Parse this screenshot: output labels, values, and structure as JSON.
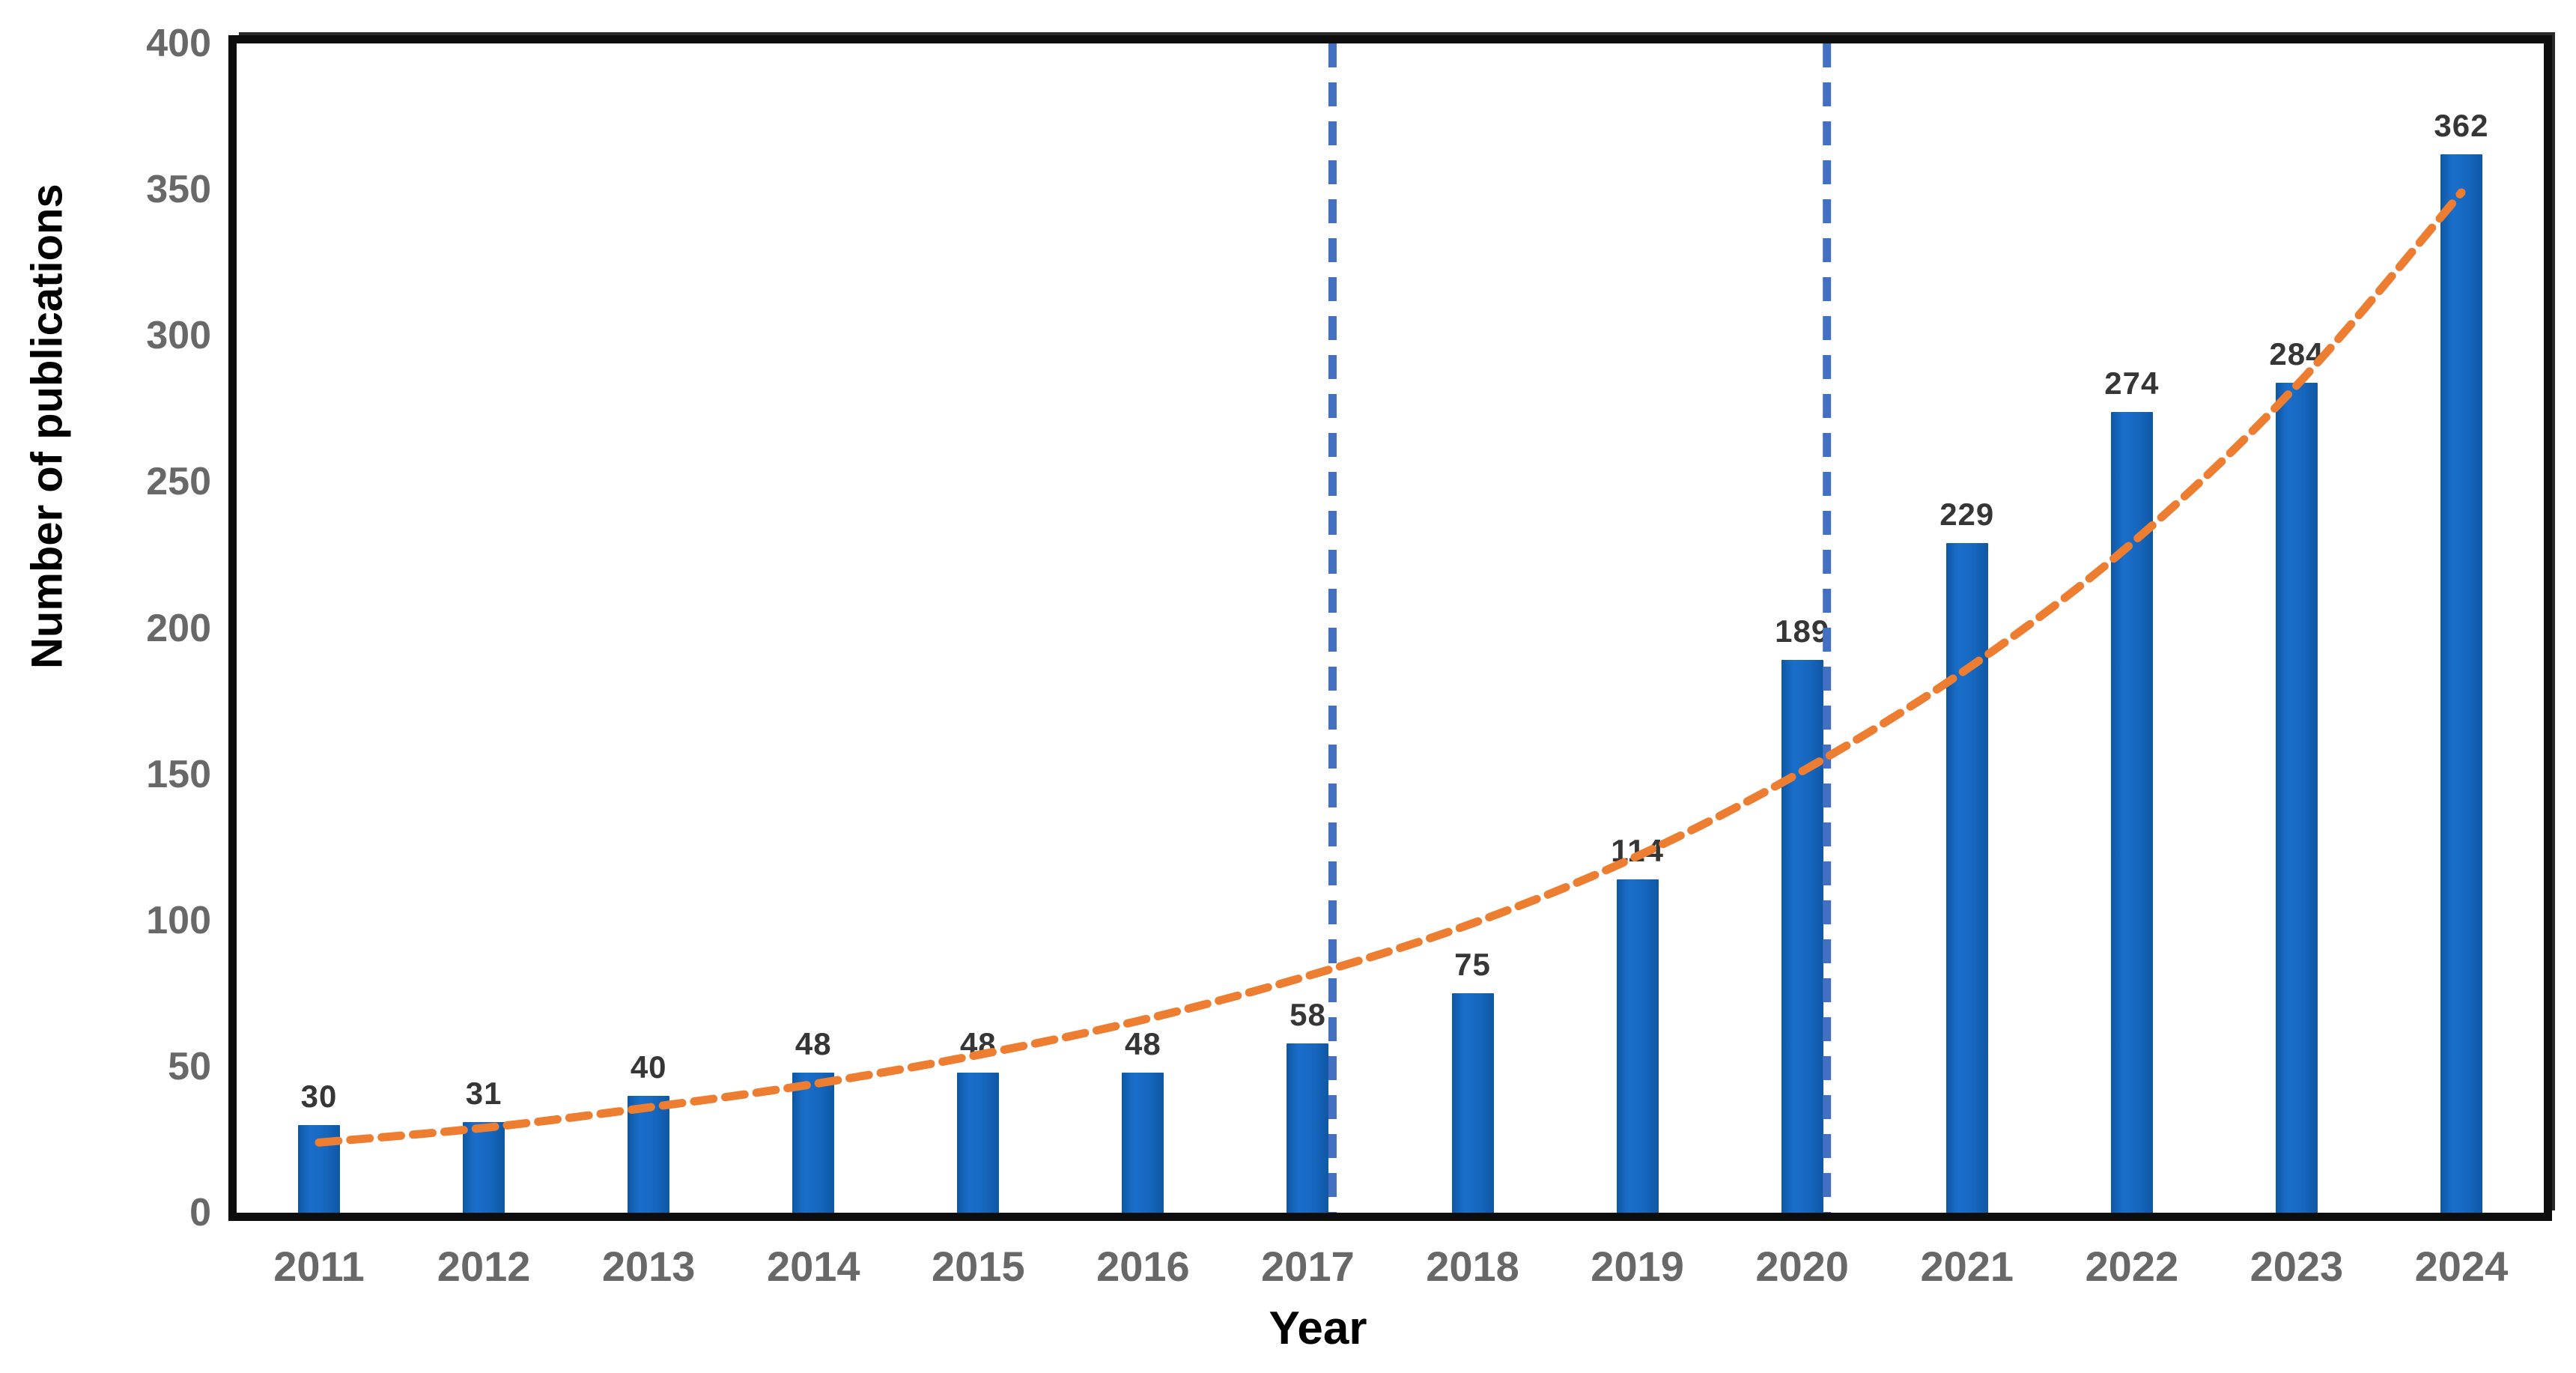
{
  "figure": {
    "ylabel": "Number of publications",
    "xlabel": "Year"
  },
  "chart_data": {
    "type": "bar",
    "title": "",
    "xlabel": "Year",
    "ylabel": "Number of publications",
    "categories": [
      "2011",
      "2012",
      "2013",
      "2014",
      "2015",
      "2016",
      "2017",
      "2018",
      "2019",
      "2020",
      "2021",
      "2022",
      "2023",
      "2024"
    ],
    "values": [
      30,
      31,
      40,
      48,
      48,
      48,
      58,
      75,
      114,
      189,
      229,
      274,
      284,
      362
    ],
    "bar_value_labels": [
      "30",
      "31",
      "40",
      "48",
      "48",
      "48",
      "58",
      "75",
      "114",
      "189",
      "229",
      "274",
      "284",
      "362"
    ],
    "ylim": [
      0,
      400
    ],
    "yticks": [
      0,
      50,
      100,
      150,
      200,
      250,
      300,
      350,
      400
    ],
    "grid": false,
    "legend": "none",
    "trend_line": {
      "style": "dashed",
      "shape": "smooth-exponential",
      "fitted_values": [
        24,
        29,
        36,
        44,
        54,
        66,
        81,
        99,
        122,
        151,
        186,
        229,
        283,
        349
      ]
    },
    "vlines": [
      {
        "after_year": "2017",
        "style": "dashed",
        "span": "full-height"
      },
      {
        "after_year": "2020",
        "style": "dashed",
        "span": "full-height"
      }
    ],
    "colors": {
      "bar_main": "#1565BC",
      "bar_edge": "#0F57A3",
      "bar_light": "#1A6FCB",
      "trend": "#ED7D31",
      "vline": "#4470C2",
      "tick_label": "#686868",
      "value_label": "#363636",
      "axis_title": "#000000",
      "frame": "#0d0d0d"
    }
  }
}
